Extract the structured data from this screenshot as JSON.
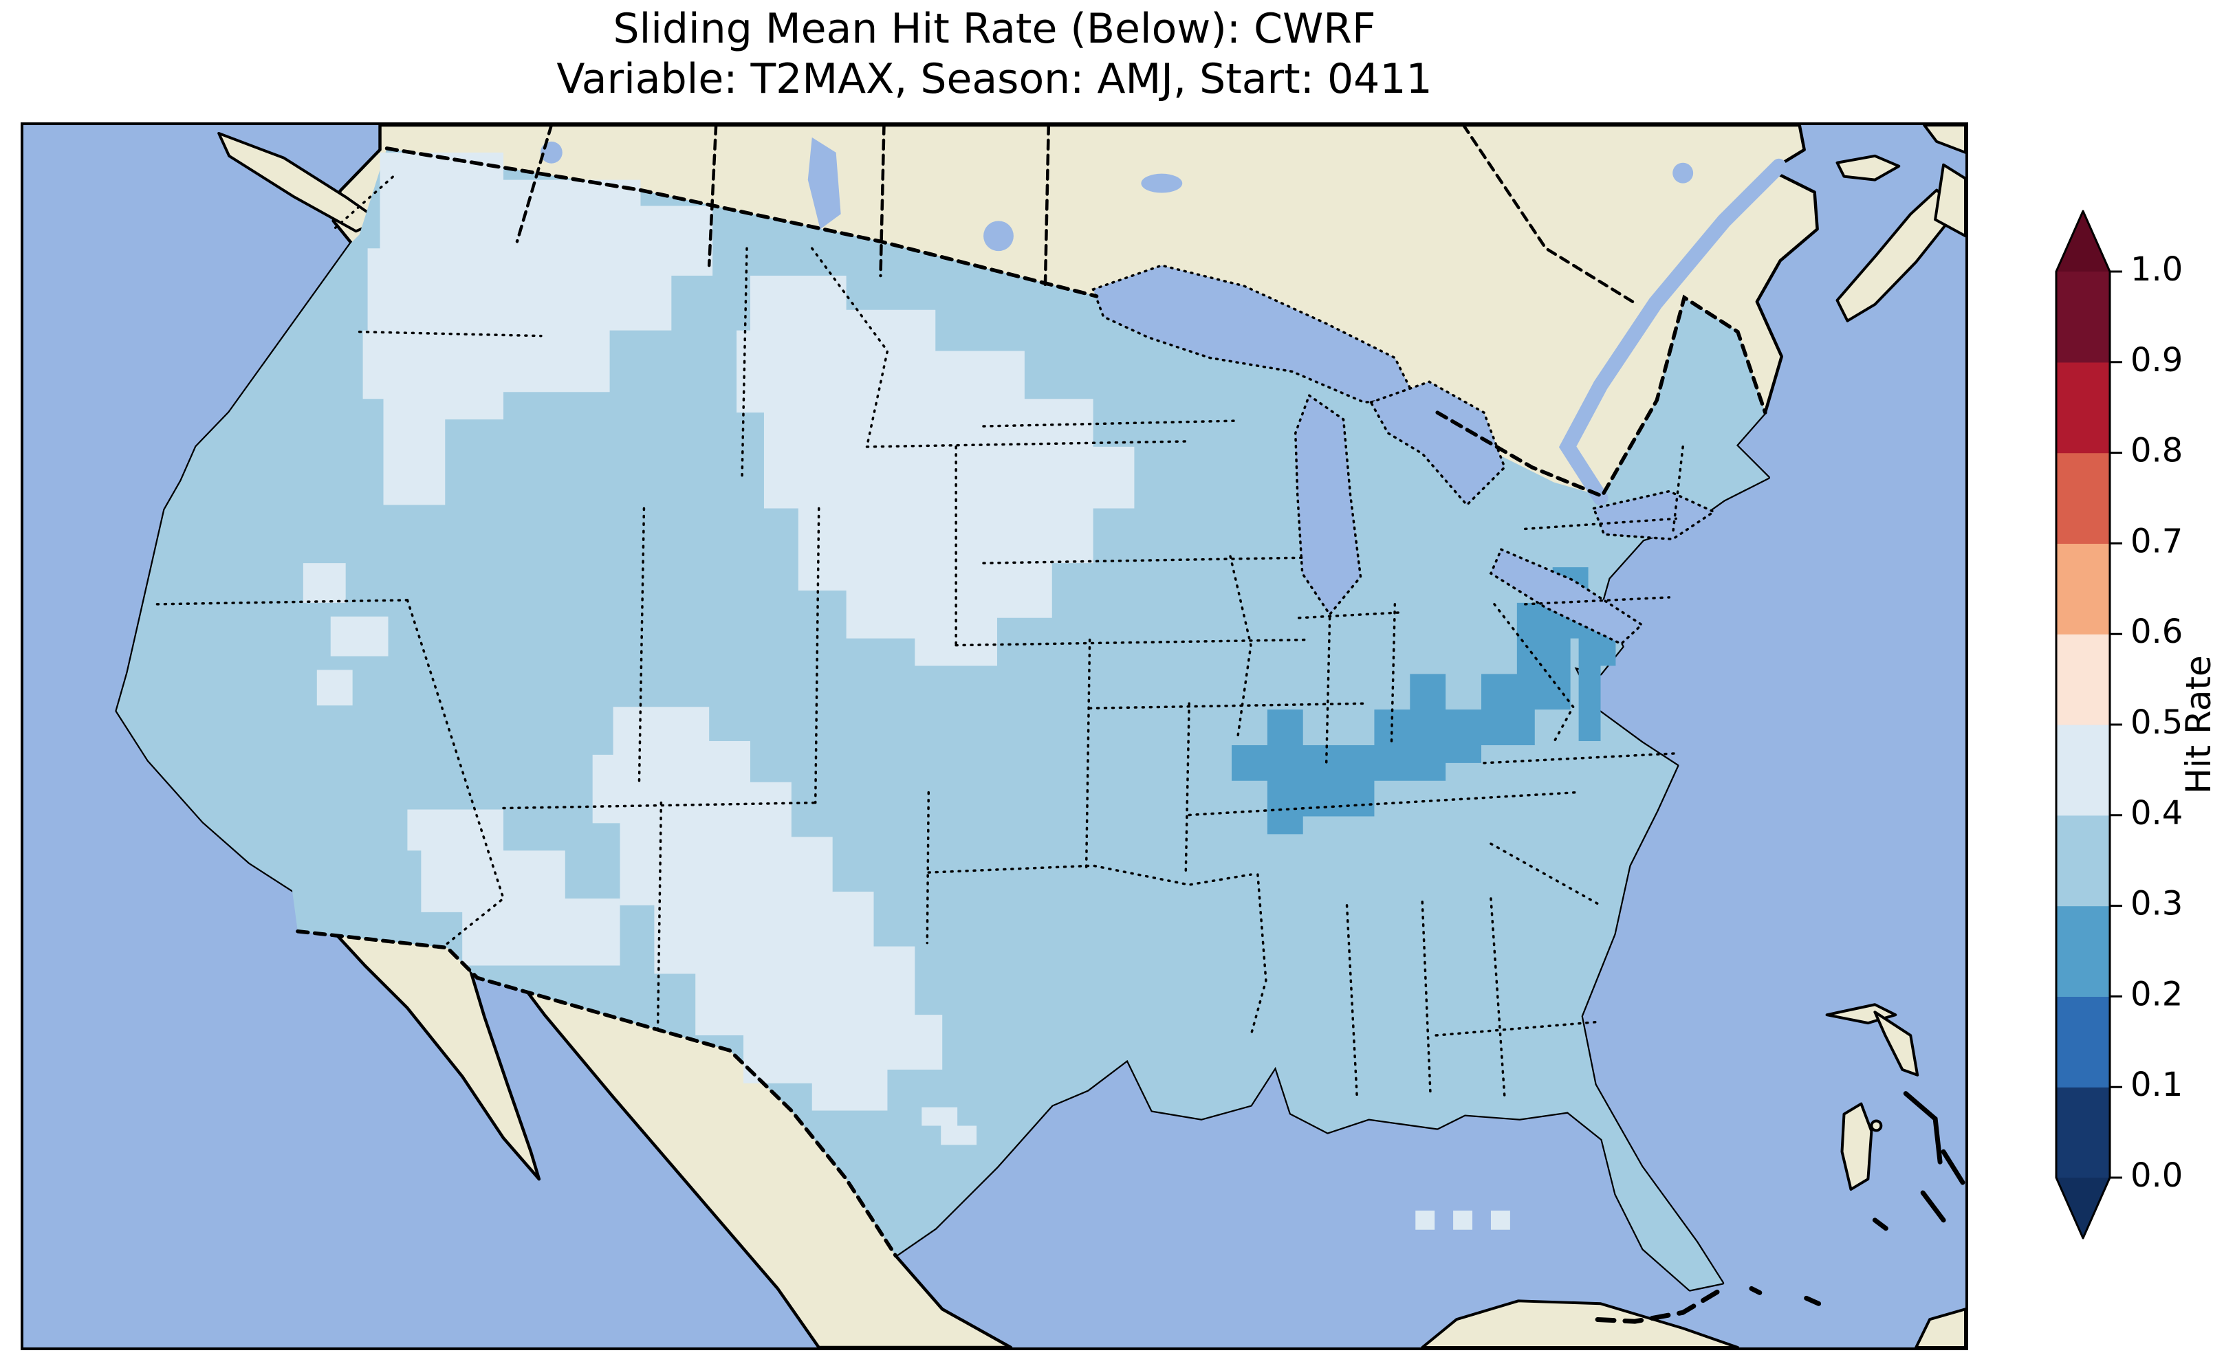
{
  "title": {
    "line1": "Sliding Mean Hit Rate (Below): CWRF",
    "line2": "Variable: T2MAX, Season: AMJ, Start: 0411"
  },
  "colorbar": {
    "label": "Hit Rate",
    "ticks": [
      "0.0",
      "0.1",
      "0.2",
      "0.3",
      "0.4",
      "0.5",
      "0.6",
      "0.7",
      "0.8",
      "0.9",
      "1.0"
    ],
    "bins": [
      {
        "range": "0.0-0.1",
        "color": "#16396e"
      },
      {
        "range": "0.1-0.2",
        "color": "#2e6db4"
      },
      {
        "range": "0.2-0.3",
        "color": "#539fca"
      },
      {
        "range": "0.3-0.4",
        "color": "#a3cce1"
      },
      {
        "range": "0.4-0.5",
        "color": "#ddeaf3"
      },
      {
        "range": "0.5-0.6",
        "color": "#fbe4d6"
      },
      {
        "range": "0.6-0.7",
        "color": "#f5ab80"
      },
      {
        "range": "0.7-0.8",
        "color": "#d9604c"
      },
      {
        "range": "0.8-0.9",
        "color": "#b01a2f"
      },
      {
        "range": "0.9-1.0",
        "color": "#71102b"
      }
    ],
    "under_color": "#112f5e",
    "over_color": "#5f0a22"
  },
  "map": {
    "colors": {
      "ocean": "#97b5e3",
      "land": "#edead3",
      "lake": "#9ab7e4",
      "coastline": "#000000",
      "bin_0_2_to_0_3": "#539fca",
      "bin_0_3_to_0_4": "#a3cce1",
      "bin_0_4_to_0_5": "#ddeaf3"
    }
  },
  "chart_data": {
    "type": "heatmap",
    "title": "Sliding Mean Hit Rate (Below): CWRF",
    "subtitle": "Variable: T2MAX, Season: AMJ, Start: 0411",
    "colorbar_label": "Hit Rate",
    "colorbar_ticks": [
      0.0,
      0.1,
      0.2,
      0.3,
      0.4,
      0.5,
      0.6,
      0.7,
      0.8,
      0.9,
      1.0
    ],
    "colorbar_range": [
      0.0,
      1.0
    ],
    "colormap": "RdBu reversed (blue = low, red = high), 10 discrete bins with under/over arrows",
    "region": "Contiguous United States (Lambert-conformal style map, Canada/Mexico/Caribbean shown without data)",
    "observed_regions": [
      {
        "hit_rate_bin": "0.2-0.3",
        "areas": [
          "Kentucky",
          "West Virginia",
          "Chesapeake Bay coastal cells"
        ]
      },
      {
        "hit_rate_bin": "0.3-0.4",
        "areas": [
          "most of the contiguous United States"
        ]
      },
      {
        "hit_rate_bin": "0.4-0.5",
        "areas": [
          "Washington and northern Idaho",
          "eastern Montana through the Dakotas, Minnesota, Wisconsin and Iowa",
          "Colorado-New Mexico-west Texas",
          "southern Arizona / New Mexico border strip",
          "scattered cells in western Oregon",
          "isolated cells near the Florida Keys"
        ]
      }
    ]
  }
}
